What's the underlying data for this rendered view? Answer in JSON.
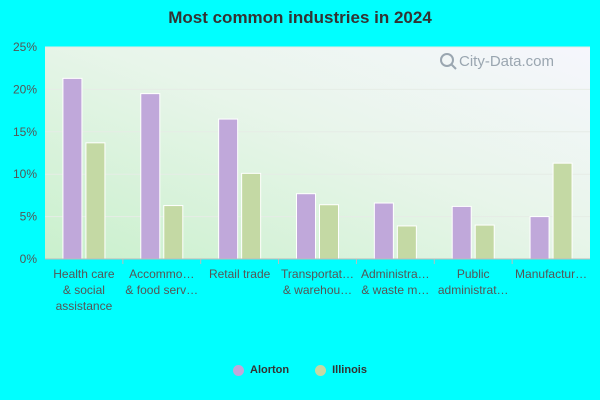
{
  "title": "Most common industries in 2024",
  "watermark": "City-Data.com",
  "colors": {
    "background": "#00ffff",
    "Alorton": "#c0a8da",
    "Illinois": "#c4d9a4"
  },
  "chart_data": {
    "type": "bar",
    "title": "Most common industries in 2024",
    "categories": [
      [
        "Health care",
        "& social",
        "assistance"
      ],
      [
        "Accommo…",
        "& food serv…"
      ],
      [
        "Retail trade"
      ],
      [
        "Transportat…",
        "& warehou…"
      ],
      [
        "Administra…",
        "& waste m…"
      ],
      [
        "Public",
        "administrat…"
      ],
      [
        "Manufactur…"
      ]
    ],
    "series": [
      {
        "name": "Alorton",
        "values": [
          21.3,
          19.5,
          16.5,
          7.7,
          6.6,
          6.2,
          5.0
        ]
      },
      {
        "name": "Illinois",
        "values": [
          13.7,
          6.3,
          10.1,
          6.4,
          3.9,
          4.0,
          11.3
        ]
      }
    ],
    "ylim": [
      0,
      25
    ],
    "yticks": [
      0,
      5,
      10,
      15,
      20,
      25
    ],
    "ytick_labels": [
      "0%",
      "5%",
      "10%",
      "15%",
      "20%",
      "25%"
    ],
    "grid": true,
    "legend": "bottom-center"
  }
}
